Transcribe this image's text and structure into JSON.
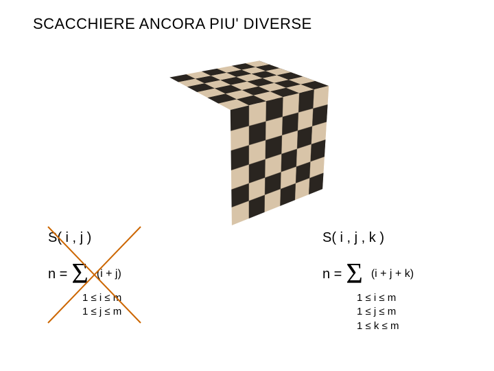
{
  "title": "SCACCHIERE  ANCORA  PIU'  DIVERSE",
  "cube": {
    "grid": 6,
    "color_dark": "#2a2520",
    "color_light": "#d8c4a8"
  },
  "left": {
    "s": "S( i , j )",
    "n_prefix": "n  =",
    "sigma": "Σ",
    "sum_arg": "(i + j)",
    "bounds": [
      "1 ≤  i ≤  m",
      "1 ≤  j ≤  m"
    ],
    "cross_color": "#cc6600",
    "cross_stroke": 2
  },
  "right": {
    "s": "S( i , j , k )",
    "n_prefix": "n  =",
    "sigma": "Σ",
    "sum_arg": "(i + j + k)",
    "bounds": [
      "1 ≤  i ≤  m",
      "1 ≤  j ≤  m",
      "1 ≤  k ≤  m"
    ]
  }
}
